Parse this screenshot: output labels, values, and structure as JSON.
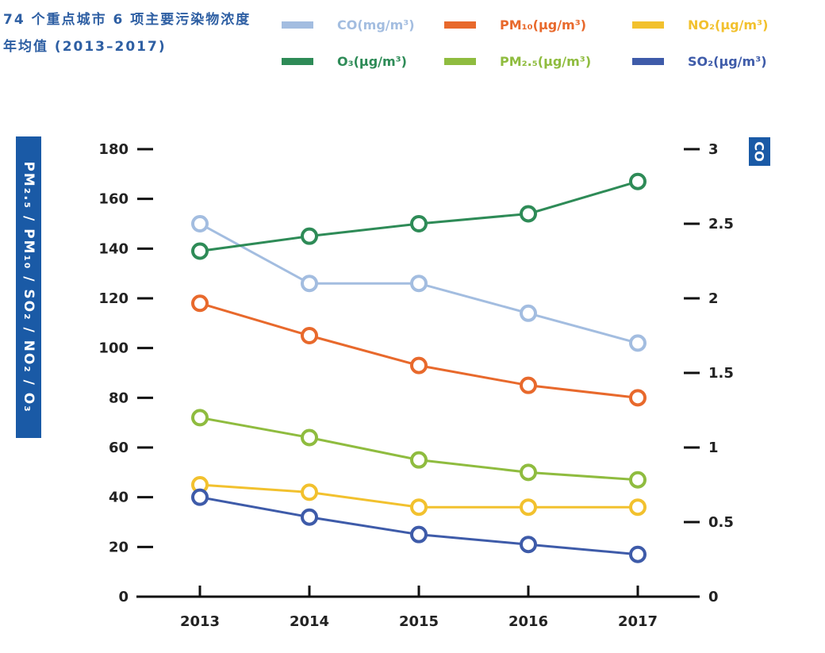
{
  "chart_data": {
    "type": "line",
    "title": "74 个重点城市 6 项主要污染物浓度年均值 (2013–2017)",
    "x": [
      "2013",
      "2014",
      "2015",
      "2016",
      "2017"
    ],
    "ylabel": "PM₂.₅ / PM₁₀ / SO₂ / NO₂ / O₃",
    "ylabel_right": "CO",
    "ylim": [
      0,
      180
    ],
    "ylim_right": [
      0,
      3
    ],
    "yticks": [
      "0",
      "20",
      "40",
      "60",
      "80",
      "100",
      "120",
      "140",
      "160",
      "180"
    ],
    "yticks_right": [
      "0",
      "0.5",
      "1",
      "1.5",
      "2",
      "2.5",
      "3"
    ],
    "series": [
      {
        "name": "CO",
        "unit": "(mg/m³)",
        "axis": "right",
        "color": "#a3bde0",
        "values": [
          2.5,
          2.1,
          2.1,
          1.9,
          1.7
        ]
      },
      {
        "name": "PM₁₀",
        "unit": "(μg/m³)",
        "axis": "left",
        "color": "#e8692c",
        "values": [
          118,
          105,
          93,
          85,
          80
        ]
      },
      {
        "name": "NO₂",
        "unit": "(μg/m³)",
        "axis": "left",
        "color": "#f2c12e",
        "values": [
          45,
          42,
          36,
          36,
          36
        ]
      },
      {
        "name": "O₃",
        "unit": "(μg/m³)",
        "axis": "left",
        "color": "#2e8b57",
        "values": [
          139,
          145,
          150,
          154,
          167
        ]
      },
      {
        "name": "PM₂.₅",
        "unit": "(μg/m³)",
        "axis": "left",
        "color": "#8fbc3f",
        "values": [
          72,
          64,
          55,
          50,
          47
        ]
      },
      {
        "name": "SO₂",
        "unit": "(μg/m³)",
        "axis": "left",
        "color": "#3e5ba9",
        "values": [
          40,
          32,
          25,
          21,
          17
        ]
      }
    ]
  }
}
